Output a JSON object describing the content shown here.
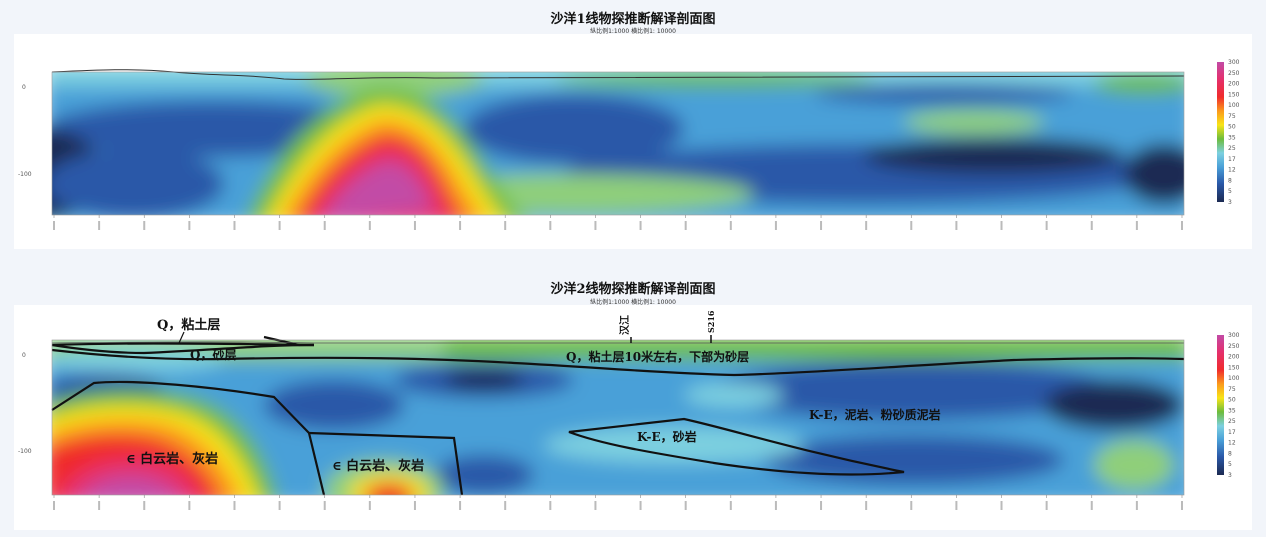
{
  "chart_data": [
    {
      "type": "heatmap",
      "title": "沙洋1线物探推断解译剖面图",
      "subtitle": "纵比例1:1000 横比例1: 10000",
      "colorbar_ticks": [
        "300",
        "250",
        "200",
        "150",
        "100",
        "75",
        "50",
        "35",
        "25",
        "17",
        "12",
        "8",
        "5",
        "3"
      ],
      "yticks": [
        "0",
        "-100"
      ],
      "colormap": [
        "#1c2a52",
        "#2a58a8",
        "#4aa0d8",
        "#7dd0e0",
        "#8fcf7a",
        "#6cbc3c",
        "#c9e21c",
        "#f8e418",
        "#fb9a1c",
        "#f02c2c",
        "#e4306e",
        "#c24ba6"
      ]
    },
    {
      "type": "heatmap",
      "title": "沙洋2线物探推断解译剖面图",
      "subtitle": "纵比例1:1000 横比例1: 10000",
      "colorbar_ticks": [
        "300",
        "250",
        "200",
        "150",
        "100",
        "75",
        "50",
        "35",
        "25",
        "17",
        "12",
        "8",
        "5",
        "3"
      ],
      "yticks": [
        "0",
        "-100"
      ],
      "annotations": {
        "q_clay": "Q，粘土层",
        "q_sand": "Q，砂层",
        "q_main": "Q，粘土层10米左右，下部为砂层",
        "ke_sand": "K-E，砂岩",
        "ke_mud": "K-E，泥岩、粉砂质泥岩",
        "dolo1": "∈ 白云岩、灰岩",
        "dolo2": "∈ 白云岩、灰岩",
        "river": "汉江",
        "road": "S216"
      }
    }
  ]
}
